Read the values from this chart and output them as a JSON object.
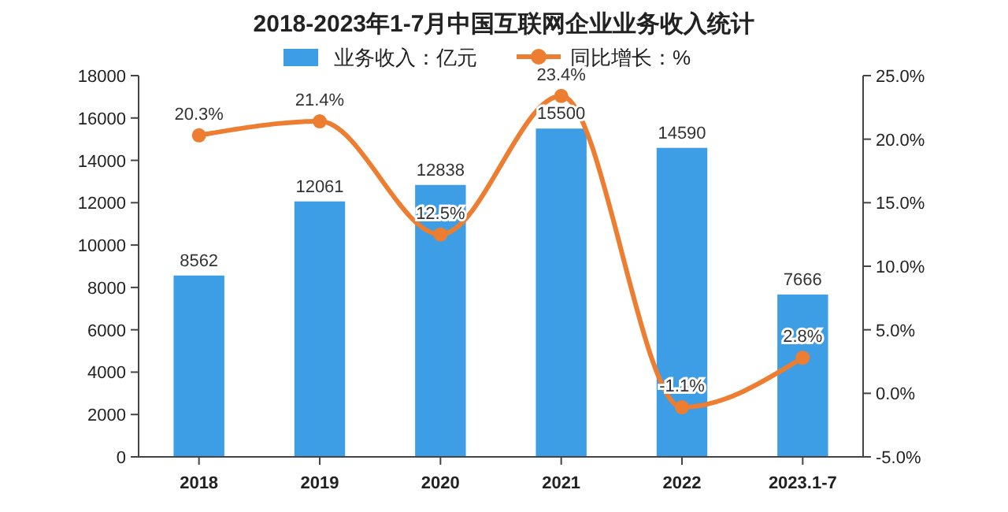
{
  "chart_data": {
    "type": "bar",
    "title": "2018-2023年1-7月中国互联网企业业务收入统计",
    "categories": [
      "2018",
      "2019",
      "2020",
      "2021",
      "2022",
      "2023.1-7"
    ],
    "series": [
      {
        "name": "业务收入：亿元",
        "color": "#3d9ee6",
        "values": [
          8562,
          12061,
          12838,
          15500,
          14590,
          7666
        ],
        "value_labels": [
          "8562",
          "12061",
          "12838",
          "15500",
          "14590",
          "7666"
        ]
      },
      {
        "name": "同比增长：%",
        "type": "line",
        "axis": "y2",
        "color": "#ed7d31",
        "marker": "circle",
        "values": [
          20.3,
          21.4,
          12.5,
          23.4,
          -1.1,
          2.8
        ],
        "value_labels": [
          "20.3%",
          "21.4%",
          "12.5%",
          "23.4%",
          "-1.1%",
          "2.8%"
        ]
      }
    ],
    "ylim": [
      0,
      18000
    ],
    "yticks": [
      0,
      2000,
      4000,
      6000,
      8000,
      10000,
      12000,
      14000,
      16000,
      18000
    ],
    "y2lim": [
      -5,
      25
    ],
    "y2ticks": [
      {
        "value": -5,
        "label": "-5.0%"
      },
      {
        "value": 0,
        "label": "0.0%"
      },
      {
        "value": 5,
        "label": "5.0%"
      },
      {
        "value": 10,
        "label": "10.0%"
      },
      {
        "value": 15,
        "label": "15.0%"
      },
      {
        "value": 20,
        "label": "20.0%"
      },
      {
        "value": 25,
        "label": "25.0%"
      }
    ],
    "legend": "top",
    "grid": false
  }
}
